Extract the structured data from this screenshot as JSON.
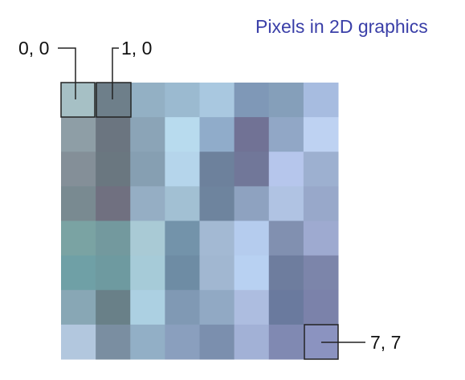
{
  "title": "Pixels in 2D graphics",
  "grid": {
    "cols": 8,
    "rows": 8,
    "colors": [
      [
        "#a6c0c5",
        "#6e7f8a",
        "#93b0c4",
        "#9bbad0",
        "#a9c8e0",
        "#7f98b7",
        "#859fba",
        "#a7bce0"
      ],
      [
        "#8e9ea6",
        "#6b7580",
        "#8ba4b7",
        "#b8dbee",
        "#90acca",
        "#717295",
        "#91a7c6",
        "#bed2f2"
      ],
      [
        "#848f98",
        "#6a7780",
        "#869fb2",
        "#b5d5eb",
        "#6d819c",
        "#717799",
        "#b6c6ec",
        "#9db0d0"
      ],
      [
        "#798a91",
        "#707080",
        "#95aec4",
        "#a2c0d3",
        "#6e849e",
        "#8ea2c0",
        "#b0c3e3",
        "#98a8ca"
      ],
      [
        "#7aa3a3",
        "#73999e",
        "#a9cad5",
        "#7393aa",
        "#a3b9d3",
        "#b5ccee",
        "#8190b0",
        "#9eaad0"
      ],
      [
        "#6fa0a6",
        "#6e9aa0",
        "#a6cbd8",
        "#6e8ca4",
        "#a1b7d1",
        "#b8d1f2",
        "#6e7d9e",
        "#7c85aa"
      ],
      [
        "#88a7b5",
        "#698088",
        "#acd0e2",
        "#8099b4",
        "#91a9c4",
        "#adbde0",
        "#6a7a9e",
        "#7b82aa"
      ],
      [
        "#b2c7de",
        "#7a8ea1",
        "#92afc6",
        "#8a9fbe",
        "#7b8fae",
        "#a2b1d6",
        "#8089b2",
        "#8b93c0"
      ]
    ]
  },
  "labels": {
    "origin": "0, 0",
    "second": "1, 0",
    "last": "7, 7"
  }
}
